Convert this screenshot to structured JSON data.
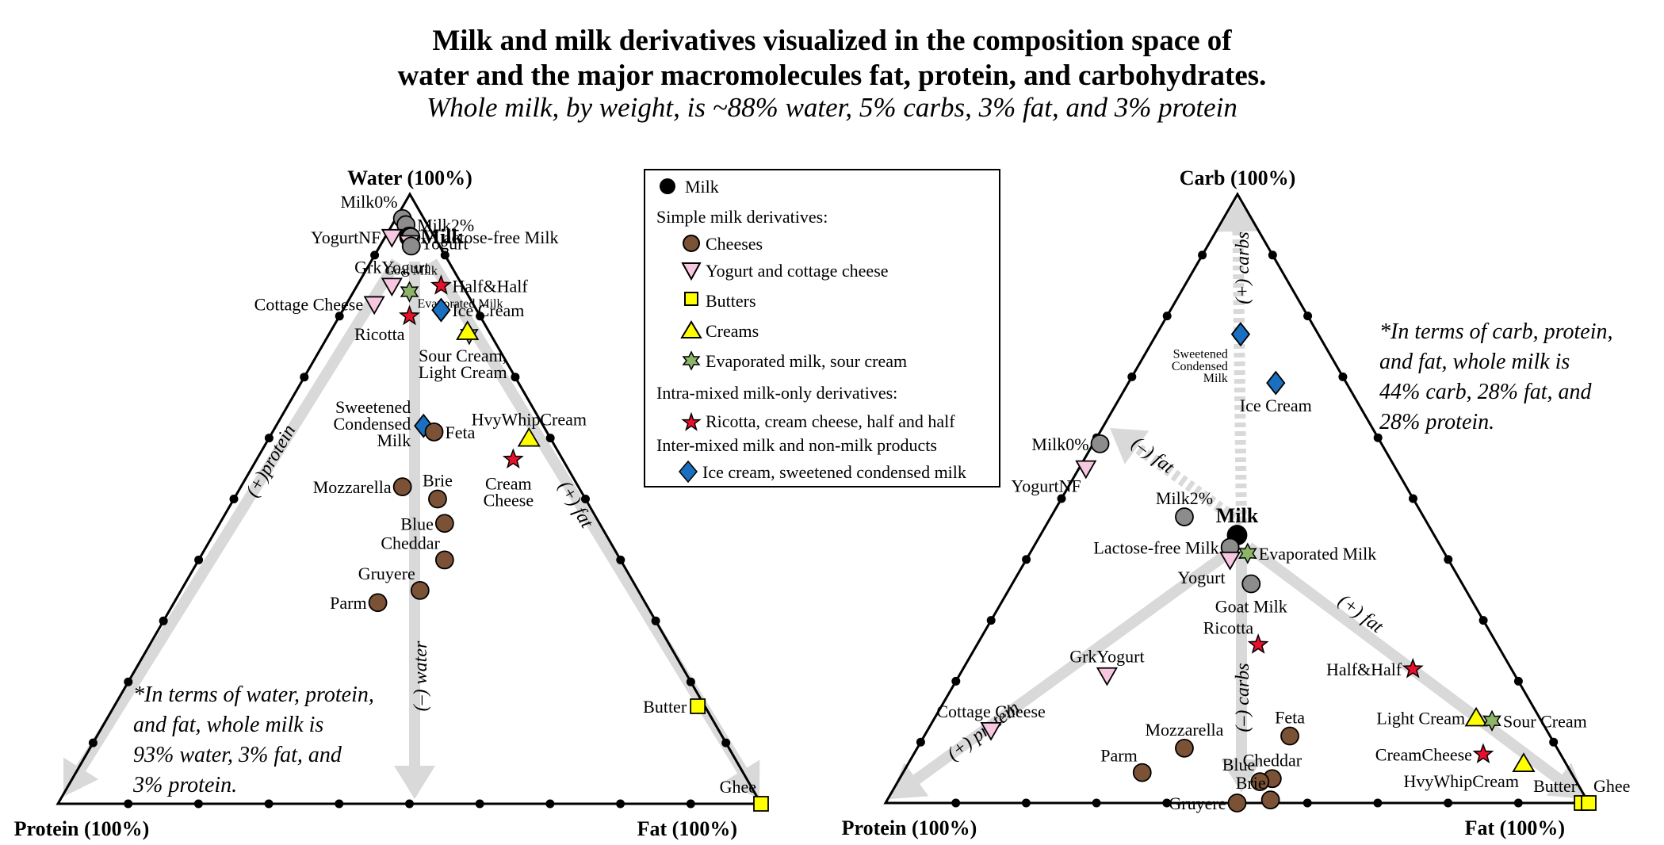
{
  "title": {
    "line1": "Milk and milk derivatives visualized in the composition space of",
    "line2": "water and the major macromolecules fat, protein, and carbohydrates.",
    "subtitle": "Whole milk, by weight, is ~88% water, 5% carbs, 3% fat, and 3% protein"
  },
  "legend": {
    "milk": "Milk",
    "group_simple": "Simple milk derivatives:",
    "cheeses": "Cheeses",
    "yogurt": "Yogurt and cottage cheese",
    "butters": "Butters",
    "creams": "Creams",
    "evap": "Evaporated milk, sour cream",
    "group_intra": "Intra-mixed milk-only derivatives:",
    "intra": "Ricotta, cream cheese, half and half",
    "group_inter": "Inter-mixed milk and non-milk products",
    "inter": "Ice cream, sweetened condensed milk"
  },
  "categories": {
    "milk": {
      "marker": "circle",
      "color": "#000000"
    },
    "milkvariant": {
      "marker": "circle",
      "color": "#8c8c8c"
    },
    "cheese": {
      "marker": "circle",
      "color": "#7b5236"
    },
    "yogurt": {
      "marker": "triangle-down",
      "color": "#f7c6e0"
    },
    "butter": {
      "marker": "square",
      "color": "#ffff00"
    },
    "cream": {
      "marker": "triangle-up",
      "color": "#ffff00"
    },
    "evap": {
      "marker": "hexstar",
      "color": "#8db56a"
    },
    "intra": {
      "marker": "star",
      "color": "#e8102a"
    },
    "inter": {
      "marker": "diamond",
      "color": "#1a6fbf"
    }
  },
  "notes": {
    "left": "*In terms of water, protein,\nand fat, whole milk is\n93% water, 3% fat, and\n3% protein.",
    "right": "*In terms of carb, protein,\nand fat, whole milk is\n44% carb, 28% fat, and\n28% protein."
  },
  "chart_data": [
    {
      "type": "scatter",
      "subtype": "ternary",
      "title": "",
      "axes": {
        "top": "Water (100%)",
        "left": "Protein (100%)",
        "right": "Fat (100%)"
      },
      "components": [
        "water",
        "protein",
        "fat"
      ],
      "grid": false,
      "ticks_per_side": 9,
      "arrows": [
        {
          "label": "(+)protein",
          "direction": "toward-protein"
        },
        {
          "label": "(–) water",
          "direction": "away-from-water"
        },
        {
          "label": "(+) fat",
          "direction": "toward-fat"
        }
      ],
      "points": [
        {
          "name": "Milk0%",
          "cat": "milkvariant",
          "water": 0.96,
          "protein": 0.03,
          "fat": 0.01,
          "label": "Milk0%",
          "lpos": "ul"
        },
        {
          "name": "Milk2%",
          "cat": "milkvariant",
          "water": 0.95,
          "protein": 0.03,
          "fat": 0.02,
          "label": "Milk2%",
          "lpos": "r"
        },
        {
          "name": "Milk",
          "cat": "milk",
          "water": 0.93,
          "protein": 0.035,
          "fat": 0.035,
          "label": "Milk",
          "lpos": "r",
          "bold": true
        },
        {
          "name": "Lactose-free Milk",
          "cat": "milkvariant",
          "water": 0.93,
          "protein": 0.033,
          "fat": 0.037,
          "label": "Lactose-free Milk",
          "lpos": "rfar"
        },
        {
          "name": "Yogurt",
          "cat": "yogurt",
          "water": 0.92,
          "protein": 0.04,
          "fat": 0.04,
          "label": "Yogurt",
          "lpos": "r"
        },
        {
          "name": "Goat Milk",
          "cat": "milkvariant",
          "water": 0.915,
          "protein": 0.04,
          "fat": 0.045,
          "label": "Goat Milk",
          "lpos": "b",
          "small": true
        },
        {
          "name": "YogurtNF",
          "cat": "yogurt",
          "water": 0.93,
          "protein": 0.06,
          "fat": 0.01,
          "label": "YogurtNF",
          "lpos": "l"
        },
        {
          "name": "GrkYogurt",
          "cat": "yogurt",
          "water": 0.85,
          "protein": 0.1,
          "fat": 0.05,
          "label": "GrkYogurt",
          "lpos": "u"
        },
        {
          "name": "Cottage Cheese",
          "cat": "yogurt",
          "water": 0.82,
          "protein": 0.14,
          "fat": 0.04,
          "label": "Cottage Cheese",
          "lpos": "l"
        },
        {
          "name": "Evaporated Milk",
          "cat": "evap",
          "water": 0.84,
          "protein": 0.08,
          "fat": 0.08,
          "label": "Evaporated Milk",
          "lpos": "rb",
          "small": true
        },
        {
          "name": "Half&Half",
          "cat": "intra",
          "water": 0.85,
          "protein": 0.03,
          "fat": 0.12,
          "label": "Half&Half",
          "lpos": "r"
        },
        {
          "name": "Ice Cream",
          "cat": "inter",
          "water": 0.81,
          "protein": 0.05,
          "fat": 0.14,
          "label": "Ice Cream",
          "lpos": "r"
        },
        {
          "name": "Ricotta",
          "cat": "intra",
          "water": 0.8,
          "protein": 0.1,
          "fat": 0.1,
          "label": "Ricotta",
          "lpos": "bl"
        },
        {
          "name": "Sour Cream",
          "cat": "evap",
          "water": 0.77,
          "protein": 0.03,
          "fat": 0.2,
          "label": "",
          "lpos": "none"
        },
        {
          "name": "Light Cream",
          "cat": "cream",
          "water": 0.775,
          "protein": 0.03,
          "fat": 0.195,
          "label": "Sour Cream,\nLight Cream",
          "lpos": "b2"
        },
        {
          "name": "Sweetened Condensed Milk",
          "cat": "inter",
          "water": 0.62,
          "protein": 0.17,
          "fat": 0.21,
          "label": "Sweetened\nCondensed\nMilk",
          "lpos": "l3"
        },
        {
          "name": "Feta",
          "cat": "cheese",
          "water": 0.61,
          "protein": 0.16,
          "fat": 0.23,
          "label": "Feta",
          "lpos": "r"
        },
        {
          "name": "HvyWhipCream",
          "cat": "cream",
          "water": 0.6,
          "protein": 0.03,
          "fat": 0.37,
          "label": "HvyWhipCream",
          "lpos": "u"
        },
        {
          "name": "Cream Cheese",
          "cat": "intra",
          "water": 0.565,
          "protein": 0.07,
          "fat": 0.365,
          "label": "Cream\nCheese",
          "lpos": "b2"
        },
        {
          "name": "Mozzarella",
          "cat": "cheese",
          "water": 0.52,
          "protein": 0.25,
          "fat": 0.23,
          "label": "Mozzarella",
          "lpos": "l"
        },
        {
          "name": "Brie",
          "cat": "cheese",
          "water": 0.5,
          "protein": 0.21,
          "fat": 0.29,
          "label": "Brie",
          "lpos": "u"
        },
        {
          "name": "Blue",
          "cat": "cheese",
          "water": 0.46,
          "protein": 0.22,
          "fat": 0.32,
          "label": "Blue",
          "lpos": "l"
        },
        {
          "name": "Cheddar",
          "cat": "cheese",
          "water": 0.4,
          "protein": 0.25,
          "fat": 0.35,
          "label": "Cheddar",
          "lpos": "ul"
        },
        {
          "name": "Gruyere",
          "cat": "cheese",
          "water": 0.35,
          "protein": 0.31,
          "fat": 0.34,
          "label": "Gruyere",
          "lpos": "ul"
        },
        {
          "name": "Parm",
          "cat": "cheese",
          "water": 0.33,
          "protein": 0.38,
          "fat": 0.29,
          "label": "Parm",
          "lpos": "l"
        },
        {
          "name": "Butter",
          "cat": "butter",
          "water": 0.16,
          "protein": 0.01,
          "fat": 0.83,
          "label": "Butter",
          "lpos": "l"
        },
        {
          "name": "Ghee",
          "cat": "butter",
          "water": 0.0,
          "protein": 0.0,
          "fat": 1.0,
          "label": "Ghee",
          "lpos": "ul"
        }
      ]
    },
    {
      "type": "scatter",
      "subtype": "ternary",
      "title": "",
      "axes": {
        "top": "Carb (100%)",
        "left": "Protein (100%)",
        "right": "Fat (100%)"
      },
      "components": [
        "carb",
        "protein",
        "fat"
      ],
      "grid": false,
      "ticks_per_side": 9,
      "arrows": [
        {
          "label": "(+) carbs",
          "direction": "toward-carb",
          "dashed": true
        },
        {
          "label": "(–) fat",
          "direction": "away-from-fat",
          "dashed": true
        },
        {
          "label": "(+) protein",
          "direction": "toward-protein"
        },
        {
          "label": "(–) carbs",
          "direction": "away-from-carb"
        },
        {
          "label": "(+) fat",
          "direction": "toward-fat"
        }
      ],
      "points": [
        {
          "name": "Sweetened Condensed Milk",
          "cat": "inter",
          "carb": 0.77,
          "protein": 0.11,
          "fat": 0.12,
          "label": "Sweetened\nCondensed\nMilk",
          "lpos": "bl3",
          "small": true
        },
        {
          "name": "Ice Cream",
          "cat": "inter",
          "carb": 0.69,
          "protein": 0.1,
          "fat": 0.21,
          "label": "Ice Cream",
          "lpos": "b"
        },
        {
          "name": "Milk0%",
          "cat": "milkvariant",
          "carb": 0.59,
          "protein": 0.4,
          "fat": 0.01,
          "label": "Milk0%",
          "lpos": "l"
        },
        {
          "name": "YogurtNF",
          "cat": "yogurt",
          "carb": 0.55,
          "protein": 0.44,
          "fat": 0.01,
          "label": "YogurtNF",
          "lpos": "bl"
        },
        {
          "name": "Milk2%",
          "cat": "milkvariant",
          "carb": 0.47,
          "protein": 0.34,
          "fat": 0.19,
          "label": "Milk2%",
          "lpos": "u"
        },
        {
          "name": "Milk",
          "cat": "milk",
          "carb": 0.44,
          "protein": 0.28,
          "fat": 0.28,
          "label": "Milk",
          "lpos": "u",
          "bold": true
        },
        {
          "name": "Lactose-free Milk",
          "cat": "milkvariant",
          "carb": 0.42,
          "protein": 0.3,
          "fat": 0.28,
          "label": "Lactose-free Milk",
          "lpos": "l"
        },
        {
          "name": "Yogurt",
          "cat": "yogurt",
          "carb": 0.4,
          "protein": 0.31,
          "fat": 0.29,
          "label": "Yogurt",
          "lpos": "bl"
        },
        {
          "name": "Evaporated Milk",
          "cat": "evap",
          "carb": 0.41,
          "protein": 0.28,
          "fat": 0.31,
          "label": "Evaporated Milk",
          "lpos": "r"
        },
        {
          "name": "Goat Milk",
          "cat": "milkvariant",
          "carb": 0.36,
          "protein": 0.3,
          "fat": 0.34,
          "label": "Goat Milk",
          "lpos": "b"
        },
        {
          "name": "Ricotta",
          "cat": "intra",
          "carb": 0.26,
          "protein": 0.34,
          "fat": 0.4,
          "label": "Ricotta",
          "lpos": "ul"
        },
        {
          "name": "Half&Half",
          "cat": "intra",
          "carb": 0.22,
          "protein": 0.14,
          "fat": 0.64,
          "label": "Half&Half",
          "lpos": "l"
        },
        {
          "name": "GrkYogurt",
          "cat": "yogurt",
          "carb": 0.21,
          "protein": 0.58,
          "fat": 0.21,
          "label": "GrkYogurt",
          "lpos": "u"
        },
        {
          "name": "Light Cream",
          "cat": "cream",
          "carb": 0.14,
          "protein": 0.09,
          "fat": 0.77,
          "label": "Light Cream",
          "lpos": "l"
        },
        {
          "name": "Sour Cream",
          "cat": "evap",
          "carb": 0.135,
          "protein": 0.07,
          "fat": 0.795,
          "label": "Sour Cream",
          "lpos": "r"
        },
        {
          "name": "Cottage Cheese",
          "cat": "yogurt",
          "carb": 0.12,
          "protein": 0.79,
          "fat": 0.09,
          "label": "Cottage Cheese",
          "lpos": "u"
        },
        {
          "name": "Mozzarella",
          "cat": "cheese",
          "carb": 0.09,
          "protein": 0.53,
          "fat": 0.38,
          "label": "Mozzarella",
          "lpos": "u"
        },
        {
          "name": "Feta",
          "cat": "cheese",
          "carb": 0.11,
          "protein": 0.37,
          "fat": 0.52,
          "label": "Feta",
          "lpos": "u"
        },
        {
          "name": "CreamCheese",
          "cat": "intra",
          "carb": 0.08,
          "protein": 0.11,
          "fat": 0.81,
          "label": "CreamCheese",
          "lpos": "l"
        },
        {
          "name": "HvyWhipCream",
          "cat": "cream",
          "carb": 0.065,
          "protein": 0.06,
          "fat": 0.875,
          "label": "HvyWhipCream",
          "lpos": "bl"
        },
        {
          "name": "Parm",
          "cat": "cheese",
          "carb": 0.05,
          "protein": 0.61,
          "fat": 0.34,
          "label": "Parm",
          "lpos": "ul"
        },
        {
          "name": "Cheddar",
          "cat": "cheese",
          "carb": 0.04,
          "protein": 0.43,
          "fat": 0.53,
          "label": "Cheddar",
          "lpos": "u"
        },
        {
          "name": "Blue",
          "cat": "cheese",
          "carb": 0.035,
          "protein": 0.45,
          "fat": 0.515,
          "label": "Blue",
          "lpos": "ul"
        },
        {
          "name": "Brie",
          "cat": "cheese",
          "carb": 0.005,
          "protein": 0.45,
          "fat": 0.545,
          "label": "Brie",
          "lpos": "ul"
        },
        {
          "name": "Gruyere",
          "cat": "cheese",
          "carb": 0.0,
          "protein": 0.5,
          "fat": 0.5,
          "label": "Gruyere",
          "lpos": "l"
        },
        {
          "name": "Butter",
          "cat": "butter",
          "carb": 0.0,
          "protein": 0.01,
          "fat": 0.99,
          "label": "Butter",
          "lpos": "ul"
        },
        {
          "name": "Ghee",
          "cat": "butter",
          "carb": 0.0,
          "protein": 0.0,
          "fat": 1.0,
          "label": "Ghee",
          "lpos": "ur"
        }
      ]
    }
  ]
}
